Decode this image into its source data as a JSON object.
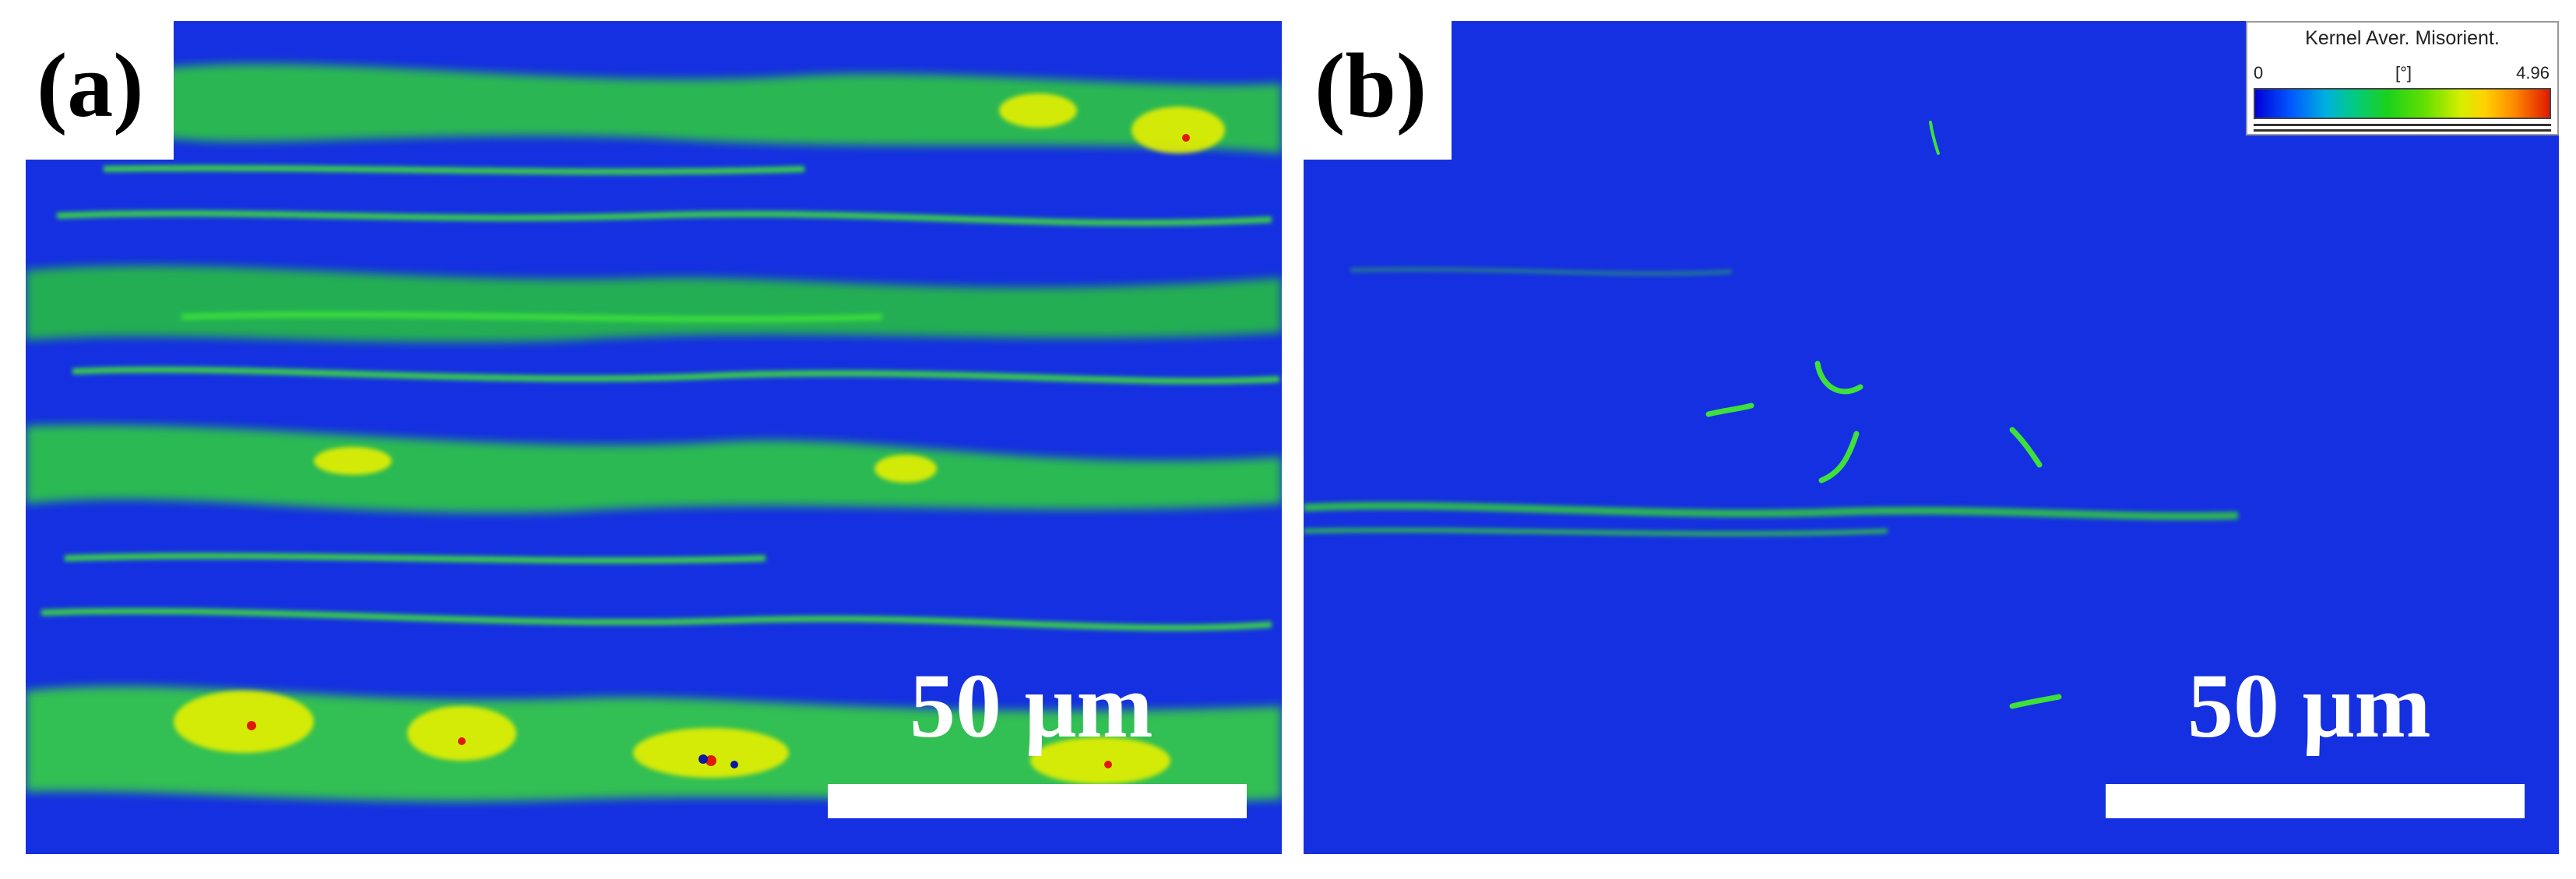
{
  "panels": [
    {
      "label": "(a)",
      "scale_bar_text": "50 μm"
    },
    {
      "label": "(b)",
      "scale_bar_text": "50 μm"
    }
  ],
  "legend": {
    "title": "Kernel Aver. Misorient.",
    "min": "0",
    "unit": "[°]",
    "max": "4.96"
  },
  "colors": {
    "background_blue": "#1530e0",
    "low_green": "#2bd92b",
    "mid_yellow": "#e6f000",
    "high_red": "#e01a00"
  }
}
